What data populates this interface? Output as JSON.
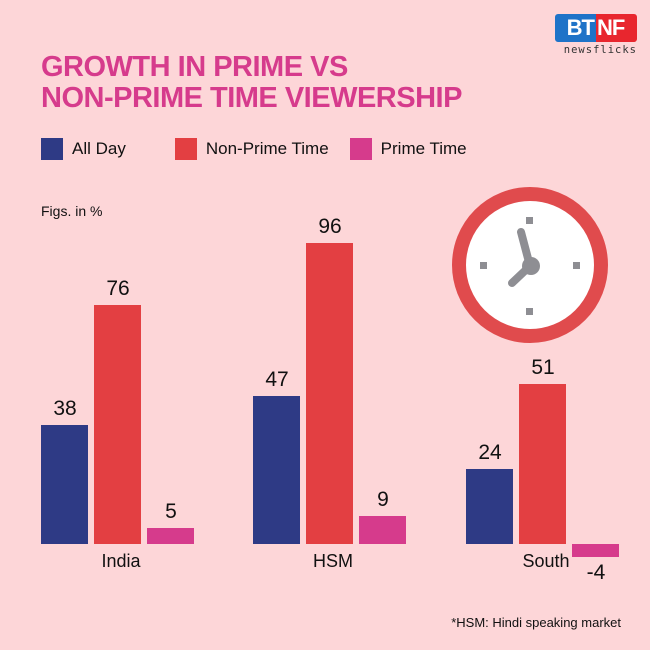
{
  "brand": {
    "logo_left": "BT",
    "logo_right": "NF",
    "tagline": "newsflicks"
  },
  "title": {
    "line1": "GROWTH IN PRIME VS",
    "line2": "NON-PRIME TIME VIEWERSHIP"
  },
  "legend": [
    {
      "label": "All Day",
      "color": "#2e3a85"
    },
    {
      "label": "Non-Prime Time",
      "color": "#e33f42"
    },
    {
      "label": "Prime Time",
      "color": "#d63b8c"
    }
  ],
  "unit_label": "Figs. in %",
  "footnote": "*HSM: Hindi speaking market",
  "colors": {
    "background": "#fdd6d8",
    "title": "#d63b8c",
    "clock_ring": "#e04b4d",
    "clock_hands": "#8e8e93"
  },
  "categories": [
    {
      "name": "India",
      "values": [
        {
          "v": 38,
          "label": "38"
        },
        {
          "v": 76,
          "label": "76"
        },
        {
          "v": 5,
          "label": "5"
        }
      ]
    },
    {
      "name": "HSM",
      "values": [
        {
          "v": 47,
          "label": "47"
        },
        {
          "v": 96,
          "label": "96"
        },
        {
          "v": 9,
          "label": "9"
        }
      ]
    },
    {
      "name": "South",
      "values": [
        {
          "v": 24,
          "label": "24"
        },
        {
          "v": 51,
          "label": "51"
        },
        {
          "v": -4,
          "label": "-4"
        }
      ]
    }
  ],
  "chart_data": {
    "type": "bar",
    "title": "GROWTH IN PRIME VS NON-PRIME TIME VIEWERSHIP",
    "subtitle": "Figs. in %",
    "categories": [
      "India",
      "HSM",
      "South"
    ],
    "series": [
      {
        "name": "All Day",
        "color": "#2e3a85",
        "values": [
          38,
          47,
          24
        ]
      },
      {
        "name": "Non-Prime Time",
        "color": "#e33f42",
        "values": [
          76,
          96,
          51
        ]
      },
      {
        "name": "Prime Time",
        "color": "#d63b8c",
        "values": [
          5,
          9,
          -4
        ]
      }
    ],
    "xlabel": "",
    "ylabel": "%",
    "ylim": [
      -10,
      100
    ],
    "grid": false,
    "legend_position": "top",
    "data_labels": true,
    "annotations": [
      "*HSM: Hindi speaking market"
    ]
  }
}
